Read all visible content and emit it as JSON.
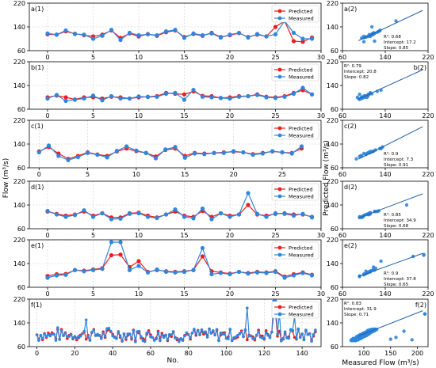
{
  "figure": {
    "y_label": "Flow (m³/s)",
    "x_label": "No.",
    "right_y_label": "Predicted Flow (m³/s)",
    "right_x_label": "Measured Flow (m³/s)"
  },
  "colors": {
    "predicted": "#ee1c1c",
    "measured": "#2e86de",
    "fit": "#1f5fa8",
    "grid": "#cccccc"
  },
  "chart_data": [
    {
      "id": "a",
      "type": "line",
      "label": "a(1)",
      "legend": [
        "Predicted",
        "Measured"
      ],
      "legend_position": "top-right",
      "xlim": [
        -2,
        30
      ],
      "ylim": [
        60,
        220
      ],
      "xticks": [
        0,
        5,
        10,
        15,
        20,
        25,
        30
      ],
      "yticks": [
        60,
        140,
        220
      ],
      "predicted": [
        115,
        114,
        125,
        117,
        112,
        108,
        114,
        128,
        103,
        118,
        108,
        116,
        110,
        122,
        128,
        106,
        116,
        110,
        120,
        106,
        112,
        119,
        106,
        114,
        108,
        140,
        160,
        92,
        90,
        104
      ],
      "measured": [
        118,
        114,
        128,
        116,
        114,
        100,
        110,
        130,
        96,
        120,
        112,
        115,
        112,
        125,
        130,
        103,
        118,
        112,
        118,
        104,
        114,
        120,
        104,
        116,
        108,
        115,
        160,
        120,
        100,
        100
      ]
    },
    {
      "id": "b",
      "type": "line",
      "label": "b(1)",
      "legend": [
        "Predicted",
        "Measured"
      ],
      "legend_position": "top-right",
      "xlim": [
        -2,
        30
      ],
      "ylim": [
        60,
        220
      ],
      "xticks": [
        0,
        5,
        10,
        15,
        20,
        25,
        30
      ],
      "yticks": [
        60,
        140,
        220
      ],
      "predicted": [
        100,
        106,
        100,
        93,
        100,
        100,
        96,
        102,
        100,
        96,
        100,
        102,
        104,
        115,
        112,
        110,
        120,
        105,
        104,
        98,
        100,
        104,
        104,
        110,
        102,
        100,
        104,
        115,
        124,
        110
      ],
      "measured": [
        96,
        108,
        88,
        92,
        96,
        106,
        90,
        104,
        96,
        96,
        103,
        101,
        102,
        112,
        115,
        92,
        125,
        102,
        100,
        98,
        96,
        102,
        104,
        108,
        100,
        98,
        102,
        112,
        132,
        110
      ]
    },
    {
      "id": "c",
      "type": "line",
      "label": "c(1)",
      "legend": [
        "Predicted",
        "Measured"
      ],
      "legend_position": "top-right",
      "xlim": [
        -1,
        29
      ],
      "ylim": [
        60,
        220
      ],
      "xticks": [
        0,
        5,
        10,
        15,
        20,
        25
      ],
      "yticks": [
        60,
        140,
        220
      ],
      "predicted": [
        115,
        130,
        108,
        90,
        100,
        112,
        105,
        100,
        115,
        125,
        116,
        110,
        98,
        120,
        125,
        100,
        110,
        108,
        110,
        112,
        114,
        112,
        106,
        110,
        115,
        112,
        110,
        125
      ],
      "measured": [
        112,
        135,
        100,
        86,
        96,
        110,
        104,
        95,
        117,
        132,
        118,
        110,
        92,
        122,
        130,
        94,
        108,
        106,
        110,
        110,
        116,
        112,
        104,
        108,
        116,
        112,
        108,
        132
      ]
    },
    {
      "id": "d",
      "type": "line",
      "label": "d(1)",
      "legend": [
        "Predicted",
        "Measured"
      ],
      "legend_position": "top-right",
      "xlim": [
        -2,
        30
      ],
      "ylim": [
        60,
        220
      ],
      "xticks": [
        0,
        5,
        10,
        15,
        20,
        25,
        30
      ],
      "yticks": [
        60,
        140,
        220
      ],
      "predicted": [
        118,
        110,
        104,
        108,
        118,
        104,
        112,
        98,
        98,
        112,
        114,
        104,
        98,
        108,
        118,
        104,
        100,
        120,
        100,
        112,
        104,
        108,
        140,
        108,
        104,
        110,
        112,
        108,
        108,
        100
      ],
      "measured": [
        120,
        108,
        100,
        106,
        122,
        100,
        112,
        92,
        94,
        110,
        112,
        100,
        96,
        108,
        125,
        100,
        95,
        128,
        92,
        112,
        100,
        108,
        180,
        110,
        100,
        112,
        110,
        104,
        110,
        98
      ]
    },
    {
      "id": "e",
      "type": "line",
      "label": "e(1)",
      "legend": [
        "Predicted",
        "Measured"
      ],
      "legend_position": "top-right",
      "xlim": [
        -2,
        30
      ],
      "ylim": [
        60,
        220
      ],
      "xticks": [
        0,
        5,
        10,
        15,
        20,
        25,
        30
      ],
      "yticks": [
        60,
        140,
        220
      ],
      "predicted": [
        98,
        104,
        105,
        118,
        116,
        120,
        124,
        168,
        170,
        128,
        148,
        112,
        118,
        114,
        112,
        114,
        118,
        164,
        114,
        110,
        106,
        112,
        108,
        112,
        110,
        114,
        96,
        104,
        110,
        102
      ],
      "measured": [
        92,
        100,
        102,
        118,
        114,
        118,
        122,
        212,
        212,
        118,
        132,
        110,
        120,
        112,
        110,
        112,
        118,
        192,
        104,
        108,
        104,
        112,
        106,
        110,
        108,
        112,
        92,
        100,
        108,
        100
      ]
    },
    {
      "id": "f",
      "type": "line",
      "label": "f(1)",
      "legend": [
        "Predicted",
        "Measured"
      ],
      "legend_position": "top-right",
      "xlim": [
        -4,
        150
      ],
      "ylim": [
        60,
        220
      ],
      "xticks": [
        0,
        20,
        40,
        60,
        80,
        100,
        120,
        140
      ],
      "yticks": [
        60,
        140,
        220
      ]
    }
  ],
  "scatter_data": [
    {
      "id": "a",
      "label": "a(2)",
      "r2": "R²: 0.68",
      "intercept": "Intercept: 17.2",
      "slope": "Slope: 0.85",
      "slope_value": 0.85,
      "intercept_value": 17.2,
      "stats_position": "bottom-right",
      "xlim": [
        60,
        220
      ],
      "ylim": [
        60,
        220
      ],
      "xticks": [
        60,
        140,
        220
      ],
      "yticks": [
        60,
        140,
        220
      ]
    },
    {
      "id": "b",
      "label": "b(2)",
      "r2": "R²: 0.79",
      "intercept": "Intercept: 20.8",
      "slope": "Slope: 0.82",
      "slope_value": 0.82,
      "intercept_value": 20.8,
      "stats_position": "top-left",
      "xlim": [
        60,
        220
      ],
      "ylim": [
        60,
        220
      ],
      "xticks": [
        60,
        140,
        220
      ],
      "yticks": [
        60,
        140,
        220
      ]
    },
    {
      "id": "c",
      "label": "c(2)",
      "r2": "R²: 0.9",
      "intercept": "Intercept: 7.3",
      "slope": "Slope: 0.91",
      "slope_value": 0.91,
      "intercept_value": 7.3,
      "stats_position": "bottom-right",
      "xlim": [
        60,
        220
      ],
      "ylim": [
        60,
        220
      ],
      "xticks": [
        60,
        140,
        220
      ],
      "yticks": [
        60,
        140,
        220
      ]
    },
    {
      "id": "d",
      "label": "d(2)",
      "r2": "R²: 0.85",
      "intercept": "Intercept: 34.9",
      "slope": "Slope: 0.68",
      "slope_value": 0.68,
      "intercept_value": 34.9,
      "stats_position": "bottom-right",
      "xlim": [
        60,
        220
      ],
      "ylim": [
        60,
        220
      ],
      "xticks": [
        60,
        140,
        220
      ],
      "yticks": [
        60,
        140,
        220
      ]
    },
    {
      "id": "e",
      "label": "e(2)",
      "r2": "R²: 0.9",
      "intercept": "Intercept: 37.8",
      "slope": "Slope: 0.65",
      "slope_value": 0.65,
      "intercept_value": 37.8,
      "stats_position": "bottom-right",
      "xlim": [
        60,
        220
      ],
      "ylim": [
        60,
        220
      ],
      "xticks": [
        60,
        140,
        220
      ],
      "yticks": [
        60,
        140,
        220
      ]
    },
    {
      "id": "f",
      "label": "f(2)",
      "r2": "R²: 0.83",
      "intercept": "Intercept: 31.9",
      "slope": "Slope: 0.71",
      "slope_value": 0.71,
      "intercept_value": 31.9,
      "stats_position": "top-left",
      "xlim": [
        60,
        220
      ],
      "ylim": [
        60,
        220
      ],
      "xticks": [
        60,
        140,
        220
      ],
      "yticks": [
        60,
        140,
        220
      ],
      "xticks_labeled": [
        100,
        150,
        200
      ]
    }
  ]
}
